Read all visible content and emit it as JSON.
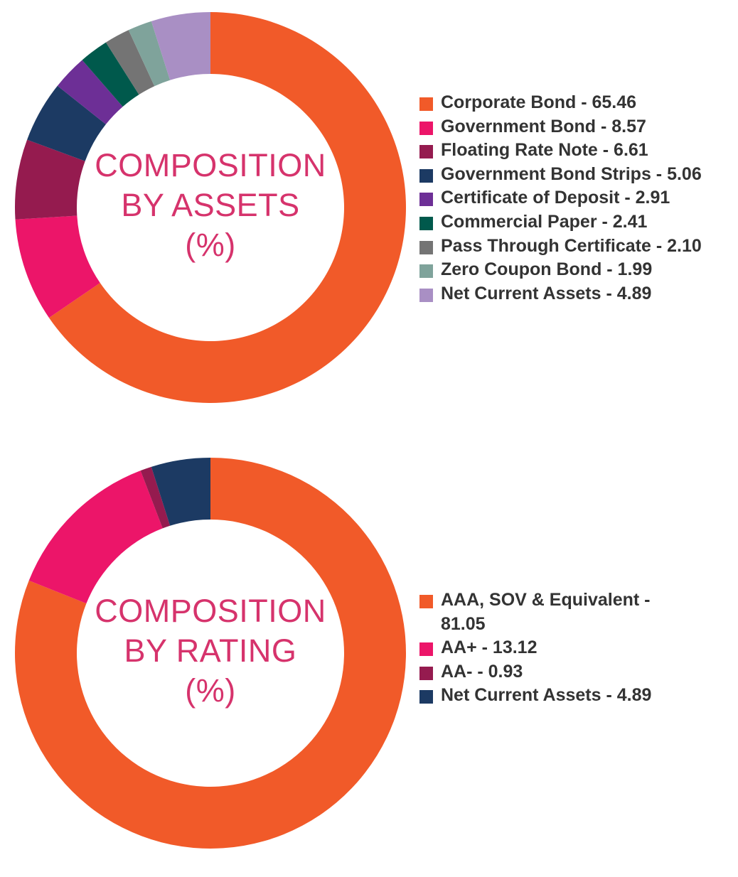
{
  "chart_data": [
    {
      "type": "pie",
      "title": "COMPOSITION BY ASSETS (%)",
      "title_lines": [
        "COMPOSITION",
        "BY ASSETS",
        "(%)"
      ],
      "slices": [
        {
          "label": "Corporate Bond - 65.46",
          "value": 65.46,
          "color": "#f15a29"
        },
        {
          "label": "Government Bond - 8.57",
          "value": 8.57,
          "color": "#ec1569"
        },
        {
          "label": "Floating Rate Note - 6.61",
          "value": 6.61,
          "color": "#951b4f"
        },
        {
          "label": "Government Bond Strips - 5.06",
          "value": 5.06,
          "color": "#1c3a63"
        },
        {
          "label": "Certificate of Deposit - 2.91",
          "value": 2.91,
          "color": "#6d2f96"
        },
        {
          "label": "Commercial Paper - 2.41",
          "value": 2.41,
          "color": "#00594c"
        },
        {
          "label": "Pass Through Certificate - 2.10",
          "value": 2.1,
          "color": "#747474"
        },
        {
          "label": "Zero Coupon Bond - 1.99",
          "value": 1.99,
          "color": "#7fa39b"
        },
        {
          "label": "Net Current Assets - 4.89",
          "value": 4.89,
          "color": "#a98fc4"
        }
      ]
    },
    {
      "type": "pie",
      "title": "COMPOSITION BY RATING (%)",
      "title_lines": [
        "COMPOSITION",
        "BY RATING",
        "(%)"
      ],
      "slices": [
        {
          "label": "AAA, SOV & Equivalent - 81.05",
          "value": 81.05,
          "color": "#f15a29"
        },
        {
          "label": "AA+ - 13.12",
          "value": 13.12,
          "color": "#ec1569"
        },
        {
          "label": "AA- - 0.93",
          "value": 0.93,
          "color": "#951b4f"
        },
        {
          "label": "Net Current Assets - 4.89",
          "value": 4.89,
          "color": "#1c3a63"
        }
      ]
    }
  ]
}
